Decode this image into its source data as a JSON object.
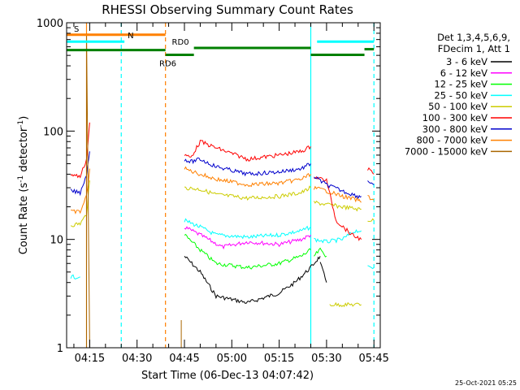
{
  "chart_data": {
    "type": "line",
    "title": "RHESSI Observing Summary Count Rates",
    "xlabel": "Start Time (06-Dec-13 04:07:42)",
    "ylabel_main": "Count Rate (s",
    "ylabel_sup1": "-1",
    "ylabel_mid": " detector",
    "ylabel_sup2": "-1",
    "ylabel_end": ")",
    "yscale": "log",
    "ylim": [
      1,
      1000
    ],
    "y_ticks": [
      {
        "value": 1,
        "label": "1"
      },
      {
        "value": 10,
        "label": "10"
      },
      {
        "value": 100,
        "label": "100"
      },
      {
        "value": 1000,
        "label": "1000"
      }
    ],
    "xlim": [
      "04:07:42",
      "05:47:00"
    ],
    "x_ticks": [
      {
        "time": "04:15",
        "label": "04:15"
      },
      {
        "time": "04:30",
        "label": "04:30"
      },
      {
        "time": "04:45",
        "label": "04:45"
      },
      {
        "time": "05:00",
        "label": "05:00"
      },
      {
        "time": "05:15",
        "label": "05:15"
      },
      {
        "time": "05:30",
        "label": "05:30"
      },
      {
        "time": "05:45",
        "label": "05:45"
      }
    ],
    "legend_header": [
      "Det 1,3,4,5,6,9,",
      "FDecim 1, Att 1"
    ],
    "legend_position": "right",
    "series": [
      {
        "name": "3 - 6 keV",
        "color": "#000000",
        "segments": [
          [
            [
              "04:45",
              7
            ],
            [
              "04:50",
              5
            ],
            [
              "04:55",
              3
            ],
            [
              "05:05",
              2.6
            ],
            [
              "05:15",
              3.2
            ],
            [
              "05:20",
              4
            ],
            [
              "05:25",
              5.5
            ],
            [
              "05:27",
              6.5
            ],
            [
              "05:28",
              7
            ]
          ],
          [
            [
              "05:28",
              6
            ],
            [
              "05:30",
              4
            ]
          ]
        ]
      },
      {
        "name": "6 - 12 keV",
        "color": "#ff00ff",
        "segments": [
          [
            [
              "04:45",
              13
            ],
            [
              "04:50",
              11
            ],
            [
              "04:57",
              8.5
            ],
            [
              "05:05",
              9.5
            ],
            [
              "05:15",
              9
            ],
            [
              "05:22",
              10
            ],
            [
              "05:25",
              11
            ]
          ]
        ]
      },
      {
        "name": "12 - 25 keV",
        "color": "#00ff00",
        "segments": [
          [
            [
              "04:45",
              11
            ],
            [
              "04:50",
              8
            ],
            [
              "04:55",
              6
            ],
            [
              "05:05",
              5.5
            ],
            [
              "05:15",
              6
            ],
            [
              "05:22",
              7
            ],
            [
              "05:25",
              8
            ]
          ],
          [
            [
              "05:26",
              7
            ],
            [
              "05:28",
              8
            ],
            [
              "05:30",
              7
            ]
          ]
        ]
      },
      {
        "name": "25 - 50 keV",
        "color": "#00ffff",
        "segments": [
          [
            [
              "04:09",
              4.5
            ],
            [
              "04:12",
              4.5
            ]
          ],
          [
            [
              "04:45",
              15
            ],
            [
              "04:50",
              13
            ],
            [
              "04:55",
              11
            ],
            [
              "05:05",
              10.5
            ],
            [
              "05:15",
              11
            ],
            [
              "05:22",
              12
            ],
            [
              "05:25",
              13
            ]
          ],
          [
            [
              "05:26",
              10
            ],
            [
              "05:30",
              9.5
            ],
            [
              "05:35",
              10
            ],
            [
              "05:39",
              12
            ],
            [
              "05:41",
              12
            ]
          ],
          [
            [
              "05:43",
              5.5
            ],
            [
              "05:45",
              5.5
            ]
          ]
        ]
      },
      {
        "name": "50 - 100 keV",
        "color": "#cccc00",
        "segments": [
          [
            [
              "04:09",
              13.5
            ],
            [
              "04:12",
              14
            ],
            [
              "04:14",
              17
            ],
            [
              "04:15",
              35
            ]
          ],
          [
            [
              "04:45",
              30
            ],
            [
              "04:50",
              29
            ],
            [
              "04:55",
              26
            ],
            [
              "05:05",
              24
            ],
            [
              "05:15",
              25
            ],
            [
              "05:22",
              27
            ],
            [
              "05:25",
              30
            ]
          ],
          [
            [
              "05:26",
              22
            ],
            [
              "05:30",
              21
            ],
            [
              "05:35",
              20
            ],
            [
              "05:40",
              19
            ],
            [
              "05:41",
              19
            ]
          ],
          [
            [
              "05:31",
              2.5
            ],
            [
              "05:41",
              2.5
            ]
          ],
          [
            [
              "05:43",
              15
            ],
            [
              "05:45",
              15
            ]
          ]
        ]
      },
      {
        "name": "100 - 300 keV",
        "color": "#ff0000",
        "segments": [
          [
            [
              "04:09",
              40
            ],
            [
              "04:12",
              38
            ],
            [
              "04:14",
              55
            ],
            [
              "04:15",
              120
            ]
          ],
          [
            [
              "04:45",
              60
            ],
            [
              "04:47",
              57
            ],
            [
              "04:50",
              80
            ],
            [
              "04:55",
              70
            ],
            [
              "05:05",
              55
            ],
            [
              "05:15",
              60
            ],
            [
              "05:22",
              65
            ],
            [
              "05:25",
              72
            ]
          ],
          [
            [
              "05:26",
              38
            ],
            [
              "05:30",
              35
            ],
            [
              "05:33",
              15
            ],
            [
              "05:38",
              11
            ],
            [
              "05:41",
              10
            ]
          ],
          [
            [
              "05:43",
              45
            ],
            [
              "05:45",
              40
            ]
          ]
        ]
      },
      {
        "name": "300 - 800 keV",
        "color": "#0000cc",
        "segments": [
          [
            [
              "04:09",
              28
            ],
            [
              "04:12",
              27
            ],
            [
              "04:14",
              40
            ],
            [
              "04:15",
              65
            ]
          ],
          [
            [
              "04:45",
              55
            ],
            [
              "04:47",
              52
            ],
            [
              "04:50",
              55
            ],
            [
              "04:55",
              47
            ],
            [
              "05:05",
              40
            ],
            [
              "05:15",
              42
            ],
            [
              "05:22",
              45
            ],
            [
              "05:25",
              50
            ]
          ],
          [
            [
              "05:26",
              38
            ],
            [
              "05:30",
              32
            ],
            [
              "05:35",
              28
            ],
            [
              "05:40",
              25
            ],
            [
              "05:41",
              25
            ]
          ],
          [
            [
              "05:43",
              35
            ],
            [
              "05:45",
              32
            ]
          ]
        ]
      },
      {
        "name": "800 - 7000 keV",
        "color": "#ff8000",
        "segments": [
          [
            [
              "04:09",
              18
            ],
            [
              "04:12",
              18
            ],
            [
              "04:14",
              25
            ],
            [
              "04:15",
              45
            ]
          ],
          [
            [
              "04:45",
              45
            ],
            [
              "04:50",
              40
            ],
            [
              "04:55",
              36
            ],
            [
              "05:05",
              32
            ],
            [
              "05:15",
              33
            ],
            [
              "05:22",
              36
            ],
            [
              "05:25",
              40
            ]
          ],
          [
            [
              "05:26",
              30
            ],
            [
              "05:30",
              28
            ],
            [
              "05:35",
              25
            ],
            [
              "05:40",
              23
            ],
            [
              "05:41",
              22
            ]
          ],
          [
            [
              "05:43",
              25
            ],
            [
              "05:45",
              23
            ]
          ]
        ]
      },
      {
        "name": "7000 - 15000 keV",
        "color": "#aa6600",
        "segments": [
          [
            [
              "04:14",
              1
            ],
            [
              "04:14",
              800
            ]
          ],
          [
            [
              "04:14",
              800
            ],
            [
              "04:15",
              1
            ]
          ],
          [
            [
              "04:44",
              1
            ],
            [
              "04:44",
              1.8
            ]
          ]
        ]
      }
    ],
    "flag_bars": [
      {
        "label": "S",
        "color": "#ff8000",
        "start": "04:07:42",
        "end": "04:39",
        "y": 775,
        "label_at": "04:09"
      },
      {
        "label": "N",
        "color": "#00ffff",
        "start": "04:07:42",
        "end": "04:26",
        "y": 670,
        "label_at": "04:26"
      },
      {
        "label": "",
        "color": "#00ffff",
        "start": "05:27",
        "end": "05:45",
        "y": 670,
        "label_at": ""
      },
      {
        "label": "RD0",
        "color": "#008000",
        "start": "04:48",
        "end": "05:25",
        "y": 585,
        "label_at": "04:40"
      },
      {
        "label": "",
        "color": "#008000",
        "start": "04:07:42",
        "end": "04:39",
        "y": 560,
        "label_at": ""
      },
      {
        "label": "RD6",
        "color": "#008000",
        "start": "04:39",
        "end": "04:48",
        "y": 505,
        "label_at": "04:36"
      },
      {
        "label": "",
        "color": "#008000",
        "start": "05:25",
        "end": "05:42",
        "y": 505,
        "label_at": ""
      },
      {
        "label": "",
        "color": "#008000",
        "start": "05:42",
        "end": "05:45",
        "y": 570,
        "label_at": ""
      }
    ],
    "vertical_markers": [
      {
        "time": "04:25",
        "color": "#00ffff",
        "style": "dashed"
      },
      {
        "time": "04:39",
        "color": "#ff8000",
        "style": "dashed"
      },
      {
        "time": "05:25",
        "color": "#00ffff",
        "style": "solid"
      },
      {
        "time": "05:45",
        "color": "#00ffff",
        "style": "dashed"
      },
      {
        "time": "04:14",
        "color": "#ff8000",
        "style": "solid"
      }
    ],
    "grid": false
  },
  "footer_timestamp": "25-Oct-2021 05:25"
}
